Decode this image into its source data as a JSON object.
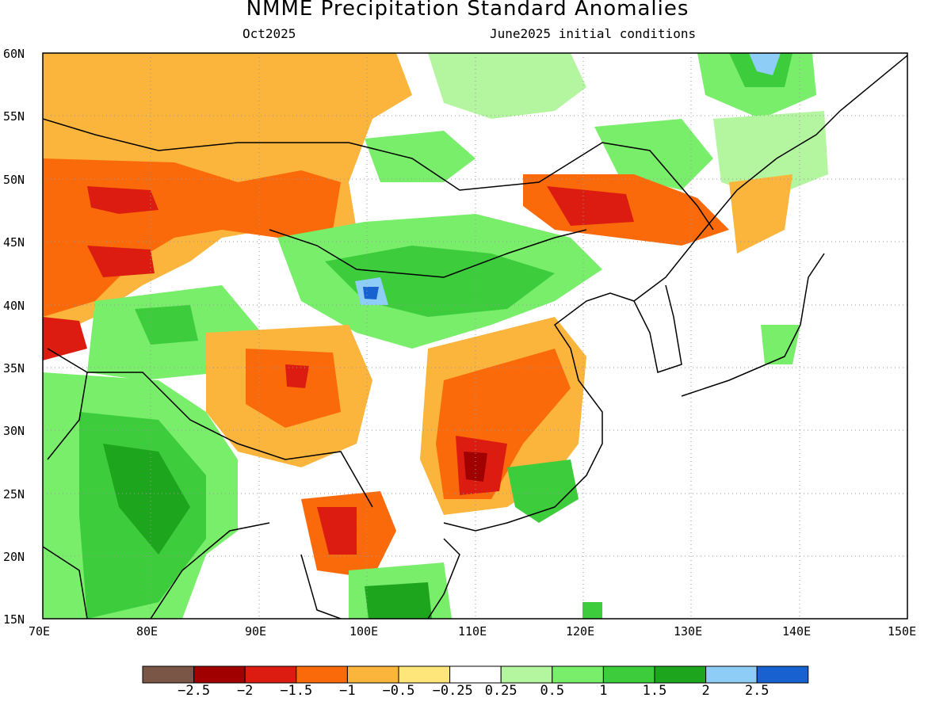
{
  "title": "NMME Precipitation Standard Anomalies",
  "valid_month": "Oct2025",
  "init_text": "June2025 initial conditions",
  "lat_labels": [
    "60N",
    "55N",
    "50N",
    "45N",
    "40N",
    "35N",
    "30N",
    "25N",
    "20N",
    "15N"
  ],
  "lon_labels": [
    "70E",
    "80E",
    "90E",
    "100E",
    "110E",
    "120E",
    "130E",
    "140E",
    "150E"
  ],
  "colorbar": {
    "colors": [
      "#7a5646",
      "#a00000",
      "#dc1c10",
      "#fa6a0a",
      "#fbb43c",
      "#ffe67a",
      "#ffffff",
      "#b4f6a0",
      "#78ee6a",
      "#3ccc3c",
      "#1ea51e",
      "#8ecdf5",
      "#1762d0"
    ],
    "labels": [
      "−2.5",
      "−2",
      "−1.5",
      "−1",
      "−0.5",
      "−0.25",
      "0.25",
      "0.5",
      "1",
      "1.5",
      "2",
      "2.5"
    ]
  }
}
